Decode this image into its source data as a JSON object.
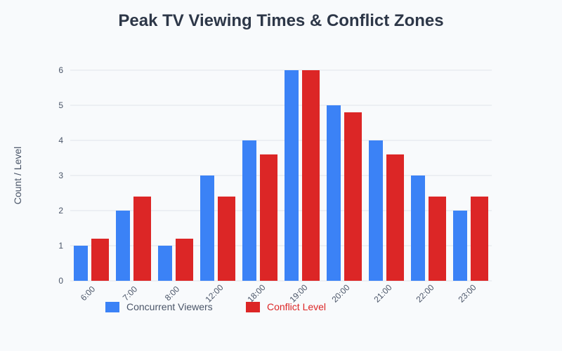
{
  "chart_data": {
    "type": "bar",
    "title": "Peak TV Viewing Times & Conflict Zones",
    "xlabel": "",
    "ylabel": "Count / Level",
    "categories": [
      "6:00",
      "7:00",
      "8:00",
      "12:00",
      "18:00",
      "19:00",
      "20:00",
      "21:00",
      "22:00",
      "23:00"
    ],
    "series": [
      {
        "name": "Concurrent Viewers",
        "color": "#3b82f6",
        "values": [
          1,
          2,
          1,
          3,
          4,
          6,
          5,
          4,
          3,
          2
        ]
      },
      {
        "name": "Conflict Level",
        "color": "#dc2626",
        "values": [
          1.2,
          2.4,
          1.2,
          2.4,
          3.6,
          6,
          4.8,
          3.6,
          2.4,
          2.4
        ]
      }
    ],
    "ylim": [
      0,
      6
    ],
    "yticks": [
      0,
      1,
      2,
      3,
      4,
      5,
      6
    ],
    "grid": true,
    "legend": "bottom"
  }
}
